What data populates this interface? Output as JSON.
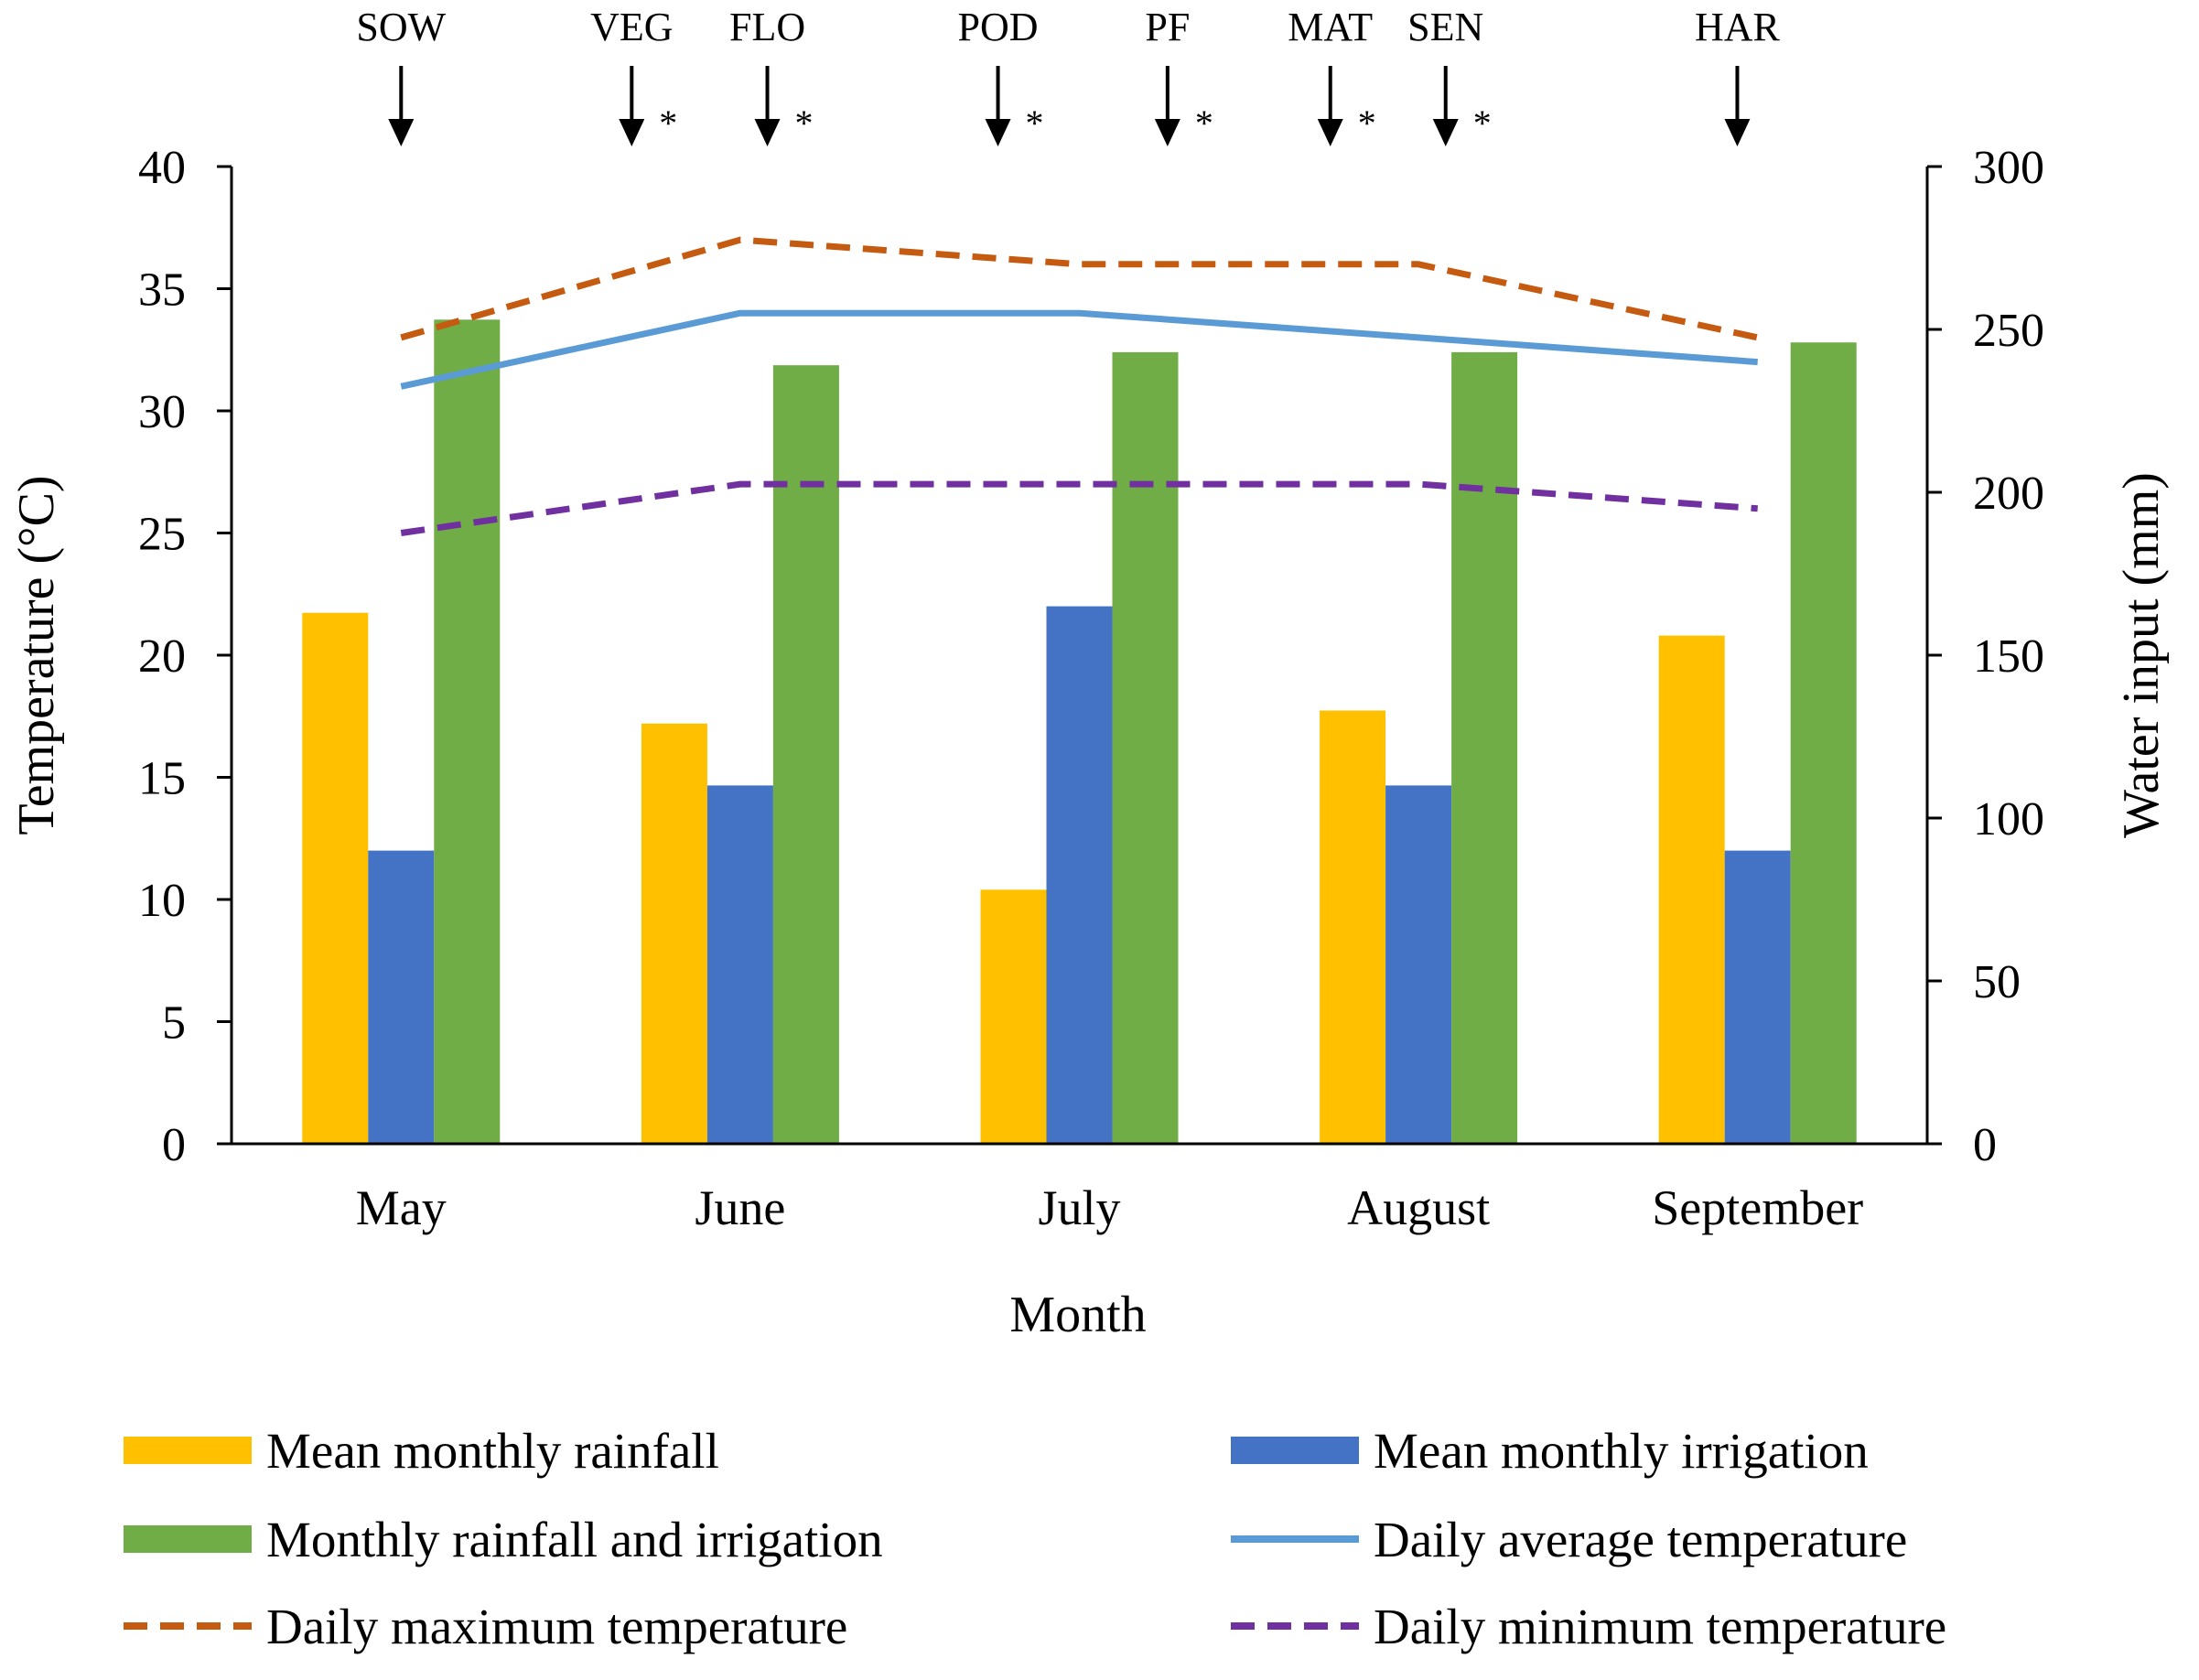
{
  "chart_data": {
    "type": "bar",
    "xlabel": "Month",
    "ylabel_left": "Temperature (°C)",
    "ylabel_right": "Water input (mm)",
    "categories": [
      "May",
      "June",
      "July",
      "August",
      "September"
    ],
    "ylim_left": [
      0,
      40
    ],
    "yticks_left": [
      "0",
      "5",
      "10",
      "15",
      "20",
      "25",
      "30",
      "35",
      "40"
    ],
    "ylim_right": [
      0,
      300
    ],
    "yticks_right": [
      "0",
      "50",
      "100",
      "150",
      "200",
      "250",
      "300"
    ],
    "bar_series": [
      {
        "name": "Mean monthly rainfall",
        "color": "#FFC000",
        "axis": "right",
        "values": [
          163,
          129,
          78,
          133,
          156
        ]
      },
      {
        "name": "Mean monthly irrigation",
        "color": "#4472C4",
        "axis": "right",
        "values": [
          90,
          110,
          165,
          110,
          90
        ]
      },
      {
        "name": "Monthly rainfall and irrigation",
        "color": "#70AD47",
        "axis": "right",
        "values": [
          253,
          239,
          243,
          243,
          246
        ]
      }
    ],
    "line_series": [
      {
        "name": "Daily average temperature",
        "color": "#5B9BD5",
        "style": "solid",
        "axis": "left",
        "values": [
          31,
          34,
          34,
          33,
          32
        ]
      },
      {
        "name": "Daily maximum temperature",
        "color": "#C55A11",
        "style": "dashed",
        "axis": "left",
        "values": [
          33,
          37,
          36,
          36,
          33
        ]
      },
      {
        "name": "Daily minimum temperature",
        "color": "#7030A0",
        "style": "dashed",
        "axis": "left",
        "values": [
          25,
          27,
          27,
          27,
          26
        ]
      }
    ],
    "stages": [
      {
        "label": "SOW",
        "asterisk": "",
        "position": 0.0
      },
      {
        "label": "VEG",
        "asterisk": "*",
        "position": 0.68
      },
      {
        "label": "FLO",
        "asterisk": "*",
        "position": 1.08
      },
      {
        "label": "POD",
        "asterisk": "*",
        "position": 1.76
      },
      {
        "label": "PF",
        "asterisk": "*",
        "position": 2.26
      },
      {
        "label": "MAT",
        "asterisk": "*",
        "position": 2.74
      },
      {
        "label": "SEN",
        "asterisk": "*",
        "position": 3.08
      },
      {
        "label": "HAR",
        "asterisk": "",
        "position": 3.94
      }
    ]
  },
  "legend": [
    {
      "label": "Mean monthly rainfall",
      "kind": "bar",
      "color": "#FFC000"
    },
    {
      "label": "Mean monthly irrigation",
      "kind": "bar",
      "color": "#4472C4"
    },
    {
      "label": "Monthly rainfall and irrigation",
      "kind": "bar",
      "color": "#70AD47"
    },
    {
      "label": "Daily average temperature",
      "kind": "solid",
      "color": "#5B9BD5"
    },
    {
      "label": "Daily maximum temperature",
      "kind": "dashed",
      "color": "#C55A11"
    },
    {
      "label": "Daily minimum temperature",
      "kind": "dashed",
      "color": "#7030A0"
    }
  ]
}
